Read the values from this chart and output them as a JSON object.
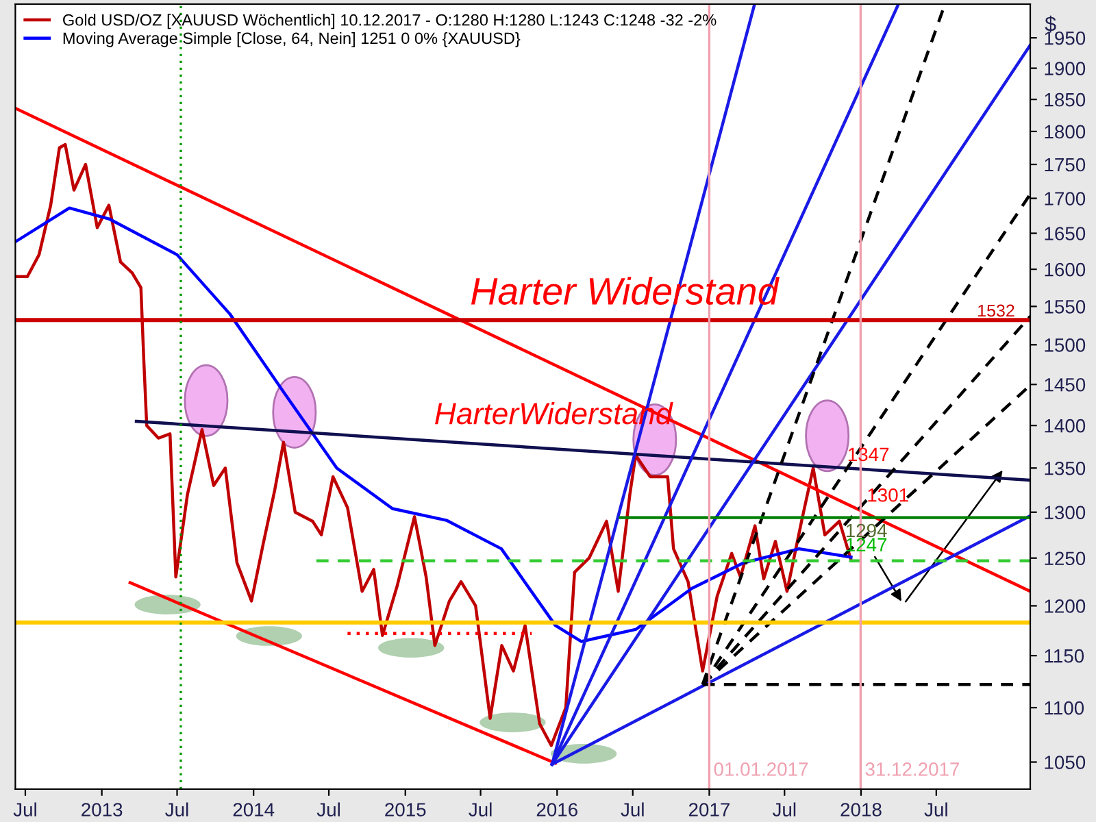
{
  "chart_data": {
    "type": "line",
    "xlim": [
      "2012-06-07",
      "2019-02-12"
    ],
    "ylim": [
      1026,
      2007
    ],
    "log": "y",
    "grid": false,
    "legend": "top left",
    "marker": "none",
    "xticks": [
      {
        "value": "2012-07-01",
        "label": "Jul"
      },
      {
        "value": "2013-01-01",
        "label": "2013"
      },
      {
        "value": "2013-07-01",
        "label": "Jul"
      },
      {
        "value": "2014-01-01",
        "label": "2014"
      },
      {
        "value": "2014-07-01",
        "label": "Jul"
      },
      {
        "value": "2015-01-01",
        "label": "2015"
      },
      {
        "value": "2015-07-01",
        "label": "Jul"
      },
      {
        "value": "2016-01-01",
        "label": "2016"
      },
      {
        "value": "2016-07-01",
        "label": "Jul"
      },
      {
        "value": "2017-01-01",
        "label": "2017"
      },
      {
        "value": "2017-07-01",
        "label": "Jul"
      },
      {
        "value": "2018-01-01",
        "label": "2018"
      },
      {
        "value": "2018-07-01",
        "label": "Jul"
      }
    ],
    "yticks": [
      1050,
      1100,
      1150,
      1200,
      1250,
      1300,
      1350,
      1400,
      1450,
      1500,
      1550,
      1600,
      1650,
      1700,
      1750,
      1800,
      1850,
      1900,
      1950
    ],
    "ylabel": "$",
    "series": [
      {
        "name": "Gold USD/OZ [XAUUSD Wöchentlich] 10.12.2017 - O:1280 H:1280 L:1243 C:1248 -32 -2%",
        "color": "#c00000",
        "line_style": "solid",
        "x": [
          "2012-06-08",
          "2012-07-06",
          "2012-08-03",
          "2012-08-31",
          "2012-09-21",
          "2012-10-05",
          "2012-10-26",
          "2012-11-23",
          "2012-12-21",
          "2013-01-18",
          "2013-02-15",
          "2013-03-15",
          "2013-04-05",
          "2013-04-12",
          "2013-04-19",
          "2013-05-17",
          "2013-06-14",
          "2013-06-28",
          "2013-07-26",
          "2013-08-30",
          "2013-09-27",
          "2013-10-25",
          "2013-11-22",
          "2013-12-27",
          "2014-01-24",
          "2014-02-21",
          "2014-03-14",
          "2014-04-11",
          "2014-05-23",
          "2014-06-13",
          "2014-07-11",
          "2014-08-15",
          "2014-09-19",
          "2014-10-17",
          "2014-11-07",
          "2014-12-12",
          "2015-01-23",
          "2015-02-20",
          "2015-03-13",
          "2015-04-17",
          "2015-05-15",
          "2015-06-19",
          "2015-07-24",
          "2015-08-21",
          "2015-09-18",
          "2015-10-16",
          "2015-11-20",
          "2015-12-18",
          "2016-01-22",
          "2016-02-12",
          "2016-03-18",
          "2016-04-29",
          "2016-05-27",
          "2016-06-24",
          "2016-07-08",
          "2016-08-12",
          "2016-09-23",
          "2016-10-07",
          "2016-11-11",
          "2016-12-16",
          "2017-01-20",
          "2017-02-24",
          "2017-03-17",
          "2017-04-21",
          "2017-05-12",
          "2017-06-09",
          "2017-07-07",
          "2017-08-11",
          "2017-09-08",
          "2017-10-06",
          "2017-11-10",
          "2017-12-08"
        ],
        "values": [
          1590,
          1590,
          1620,
          1690,
          1775,
          1780,
          1712,
          1750,
          1658,
          1690,
          1610,
          1595,
          1575,
          1480,
          1400,
          1385,
          1390,
          1230,
          1320,
          1395,
          1330,
          1350,
          1245,
          1205,
          1265,
          1325,
          1380,
          1300,
          1290,
          1275,
          1340,
          1305,
          1215,
          1238,
          1170,
          1220,
          1295,
          1230,
          1160,
          1205,
          1225,
          1200,
          1090,
          1160,
          1135,
          1180,
          1085,
          1065,
          1100,
          1235,
          1250,
          1290,
          1215,
          1320,
          1365,
          1340,
          1340,
          1260,
          1225,
          1135,
          1210,
          1255,
          1230,
          1285,
          1228,
          1268,
          1215,
          1290,
          1350,
          1275,
          1290,
          1248
        ]
      },
      {
        "name": "Moving Average Simple [Close, 64, Nein] 1251 0 0% {XAUUSD}",
        "color": "#0000ff",
        "line_style": "solid",
        "x": [
          "2012-06-07",
          "2012-10-15",
          "2013-01-20",
          "2013-07-01",
          "2013-11-05",
          "2014-03-15",
          "2014-07-20",
          "2014-12-01",
          "2015-04-10",
          "2015-08-20",
          "2015-12-28",
          "2016-02-28",
          "2016-07-08",
          "2016-11-20",
          "2017-03-25",
          "2017-08-05",
          "2017-12-08"
        ],
        "values": [
          1638,
          1686,
          1670,
          1620,
          1540,
          1440,
          1350,
          1304,
          1291,
          1260,
          1180,
          1164,
          1176,
          1218,
          1245,
          1260,
          1251
        ]
      },
      {
        "color": "#ff0000",
        "line_style": "solid",
        "x": [
          "2012-06-07",
          "2019-02-12"
        ],
        "values": [
          1836,
          1215
        ]
      },
      {
        "color": "#101050",
        "line_style": "solid",
        "x": [
          "2013-03-25",
          "2019-02-12"
        ],
        "values": [
          1405,
          1336
        ]
      },
      {
        "color": "#ff0000",
        "line_style": "solid",
        "x": [
          "2013-03-10",
          "2015-12-28"
        ],
        "values": [
          1224,
          1049
        ]
      },
      {
        "color": "#1a1ae6",
        "line_style": "solid",
        "x": [
          "2015-12-20",
          "2017-04-20"
        ],
        "values": [
          1048,
          2007
        ]
      },
      {
        "color": "#1a1ae6",
        "line_style": "solid",
        "x": [
          "2015-12-20",
          "2018-04-01"
        ],
        "values": [
          1048,
          2007
        ]
      },
      {
        "color": "#1a1ae6",
        "line_style": "solid",
        "x": [
          "2015-12-20",
          "2019-02-12"
        ],
        "values": [
          1048,
          1938
        ]
      },
      {
        "color": "#1a1ae6",
        "line_style": "solid",
        "x": [
          "2015-12-20",
          "2019-02-12"
        ],
        "values": [
          1048,
          1296
        ]
      },
      {
        "color": "#000000",
        "line_style": "dashed",
        "x": [
          "2016-12-16",
          "2018-07-22"
        ],
        "values": [
          1122,
          2007
        ]
      },
      {
        "color": "#000000",
        "line_style": "dashed",
        "x": [
          "2016-12-16",
          "2019-02-12"
        ],
        "values": [
          1122,
          1706
        ]
      },
      {
        "color": "#000000",
        "line_style": "dashed",
        "x": [
          "2016-12-16",
          "2019-02-12"
        ],
        "values": [
          1122,
          1537
        ]
      },
      {
        "color": "#000000",
        "line_style": "dashed",
        "x": [
          "2016-12-16",
          "2019-02-12"
        ],
        "values": [
          1122,
          1449
        ]
      },
      {
        "color": "#000000",
        "line_style": "dashed",
        "x": [
          "2016-12-16",
          "2019-02-12"
        ],
        "values": [
          1122,
          1122
        ]
      },
      {
        "color": "#008000",
        "line_style": "solid",
        "x": [
          "2016-06-01",
          "2019-02-12"
        ],
        "values": [
          1294,
          1294
        ]
      },
      {
        "color": "#33cc33",
        "line_style": "dashed",
        "x": [
          "2014-06-01",
          "2019-02-12"
        ],
        "values": [
          1247,
          1247
        ]
      },
      {
        "color": "#ff0000",
        "line_style": "dotted",
        "x": [
          "2014-08-15",
          "2015-11-01"
        ],
        "values": [
          1172,
          1172
        ]
      }
    ],
    "ref_lines": [
      {
        "axis": "y",
        "value": 1532,
        "label": "1532",
        "color": "#cc0000",
        "line_style": "solid"
      },
      {
        "axis": "y",
        "value": 1183,
        "color": "#ffcc00",
        "line_style": "solid"
      },
      {
        "axis": "x",
        "value": "2013-07-10",
        "color": "#009900",
        "line_style": "dotted"
      },
      {
        "axis": "x",
        "value": "2017-01-01",
        "label": "01.01.2017",
        "color": "#f0a0b0",
        "line_style": "solid"
      },
      {
        "axis": "x",
        "value": "2017-12-31",
        "label": "31.12.2017",
        "color": "#f0a0b0",
        "line_style": "solid"
      }
    ],
    "annotations": [
      "Harter Widerstand",
      "HarterWiderstand",
      {
        "text": "1347",
        "x": "2017-11-15",
        "y": 1347
      },
      {
        "text": "1301",
        "x": "2018-01-01",
        "y": 1301
      },
      {
        "text": "1294",
        "x": "2017-11-10",
        "y": 1294
      },
      {
        "text": "1247",
        "x": "2017-11-10",
        "y": 1247
      }
    ]
  }
}
